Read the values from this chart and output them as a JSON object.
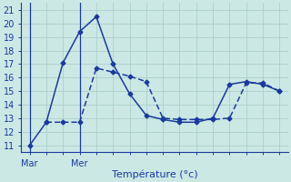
{
  "title": "Température (°c)",
  "bg_color": "#cce8e4",
  "grid_color": "#aacfcc",
  "line_color": "#1a3a9e",
  "ylim": [
    10.5,
    21.5
  ],
  "yticks": [
    11,
    12,
    13,
    14,
    15,
    16,
    17,
    18,
    19,
    20,
    21
  ],
  "xlim": [
    -0.5,
    15.5
  ],
  "num_points": 16,
  "x_vline_mar": 0,
  "x_vline_mer": 3,
  "x_label_mar": 0,
  "x_label_mer": 3,
  "series1_x": [
    0,
    1,
    2,
    3,
    4,
    5,
    6,
    7,
    8,
    9,
    10,
    11,
    12,
    13,
    14,
    15
  ],
  "series1_y": [
    11.0,
    12.7,
    17.1,
    19.4,
    20.5,
    17.0,
    14.8,
    13.2,
    12.9,
    12.7,
    12.7,
    13.0,
    15.5,
    15.7,
    15.5,
    15.0
  ],
  "series2_x": [
    1,
    2,
    3,
    4,
    5,
    6,
    7,
    8,
    9,
    10,
    11,
    12,
    13,
    14,
    15
  ],
  "series2_y": [
    12.7,
    12.7,
    12.7,
    16.7,
    16.4,
    16.1,
    15.7,
    13.0,
    12.9,
    12.9,
    12.9,
    13.0,
    15.6,
    15.6,
    15.0
  ]
}
